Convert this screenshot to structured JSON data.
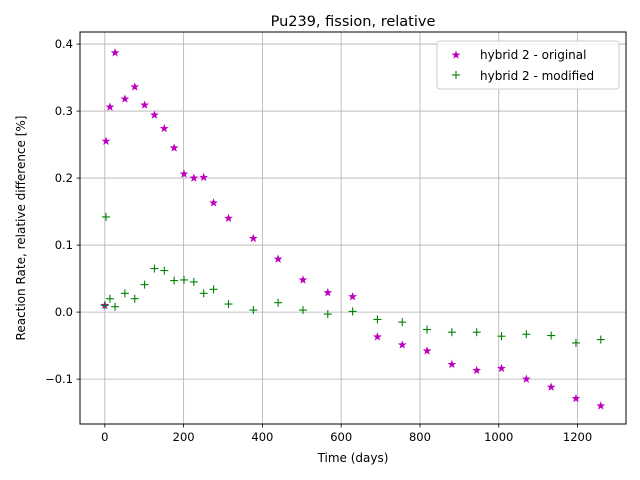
{
  "chart_data": {
    "type": "scatter",
    "title": "Pu239, fission, relative",
    "xlabel": "Time (days)",
    "ylabel": "Reaction Rate, relative difference [%]",
    "xlim": [
      -63,
      1323
    ],
    "ylim": [
      -0.167,
      0.418
    ],
    "xticks": [
      0,
      200,
      400,
      600,
      800,
      1000,
      1200
    ],
    "xtick_labels": [
      "0",
      "200",
      "400",
      "600",
      "800",
      "1000",
      "1200"
    ],
    "yticks": [
      -0.1,
      0.0,
      0.1,
      0.2,
      0.3,
      0.4
    ],
    "ytick_labels": [
      "−0.1",
      "0.0",
      "0.1",
      "0.2",
      "0.3",
      "0.4"
    ],
    "grid": true,
    "legend_position": "top-right",
    "series": [
      {
        "name": "hybrid 2 - original",
        "marker": "star",
        "color": "#bf00bf",
        "points": [
          [
            0,
            0.01
          ],
          [
            3,
            0.255
          ],
          [
            13,
            0.306
          ],
          [
            26,
            0.387
          ],
          [
            51,
            0.318
          ],
          [
            76,
            0.336
          ],
          [
            101,
            0.309
          ],
          [
            126,
            0.294
          ],
          [
            151,
            0.274
          ],
          [
            176,
            0.245
          ],
          [
            201,
            0.206
          ],
          [
            226,
            0.2
          ],
          [
            251,
            0.201
          ],
          [
            276,
            0.163
          ],
          [
            314,
            0.14
          ],
          [
            377,
            0.11
          ],
          [
            440,
            0.079
          ],
          [
            503,
            0.048
          ],
          [
            566,
            0.029
          ],
          [
            629,
            0.023
          ],
          [
            692,
            -0.037
          ],
          [
            755,
            -0.049
          ],
          [
            818,
            -0.058
          ],
          [
            881,
            -0.078
          ],
          [
            944,
            -0.087
          ],
          [
            1007,
            -0.084
          ],
          [
            1070,
            -0.1
          ],
          [
            1133,
            -0.112
          ],
          [
            1196,
            -0.129
          ],
          [
            1259,
            -0.14
          ]
        ]
      },
      {
        "name": "hybrid 2 - modified",
        "marker": "plus",
        "color": "#008000",
        "points": [
          [
            0,
            0.01
          ],
          [
            3,
            0.142
          ],
          [
            13,
            0.02
          ],
          [
            26,
            0.008
          ],
          [
            51,
            0.028
          ],
          [
            76,
            0.02
          ],
          [
            101,
            0.041
          ],
          [
            126,
            0.065
          ],
          [
            151,
            0.062
          ],
          [
            176,
            0.047
          ],
          [
            201,
            0.048
          ],
          [
            226,
            0.045
          ],
          [
            251,
            0.028
          ],
          [
            276,
            0.034
          ],
          [
            314,
            0.012
          ],
          [
            377,
            0.003
          ],
          [
            440,
            0.014
          ],
          [
            503,
            0.003
          ],
          [
            566,
            -0.003
          ],
          [
            629,
            0.001
          ],
          [
            692,
            -0.011
          ],
          [
            755,
            -0.015
          ],
          [
            818,
            -0.026
          ],
          [
            881,
            -0.03
          ],
          [
            944,
            -0.03
          ],
          [
            1007,
            -0.036
          ],
          [
            1070,
            -0.033
          ],
          [
            1133,
            -0.035
          ],
          [
            1196,
            -0.046
          ],
          [
            1259,
            -0.041
          ]
        ]
      }
    ]
  }
}
